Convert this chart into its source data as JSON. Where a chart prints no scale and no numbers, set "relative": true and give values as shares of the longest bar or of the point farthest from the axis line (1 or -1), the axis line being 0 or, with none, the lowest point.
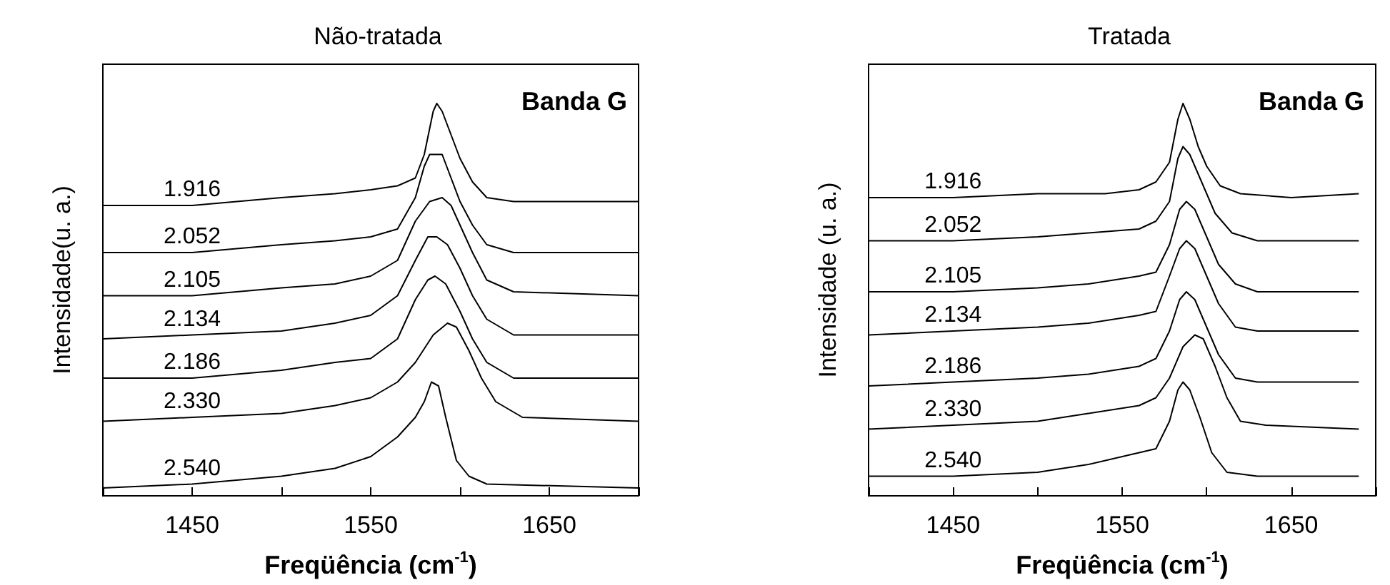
{
  "chart_data": [
    {
      "type": "line",
      "title": "Não-tratada",
      "xlabel": "Freqüência (cm$^{-1}$)",
      "ylabel": "Intensidade(u. a.)",
      "relative": true,
      "xlim": [
        1400,
        1700
      ],
      "xticks": [
        {
          "value": 1400,
          "label": null
        },
        1450,
        {
          "value": 1500,
          "label": null
        },
        1550,
        {
          "value": 1600,
          "label": null
        },
        1650,
        {
          "value": 1700,
          "label": null
        }
      ],
      "grid": false,
      "legend": false,
      "annotations": [
        "Banda G"
      ],
      "series": [
        {
          "name": "1.916",
          "color": "#000000",
          "x": [
            1400,
            1450,
            1500,
            1530,
            1550,
            1565,
            1575,
            1580,
            1585,
            1587,
            1590,
            1595,
            1600,
            1607,
            1615,
            1630,
            1700
          ],
          "values": [
            0.74,
            0.74,
            0.76,
            0.77,
            0.78,
            0.79,
            0.81,
            0.87,
            0.98,
            1,
            0.98,
            0.92,
            0.86,
            0.8,
            0.76,
            0.75,
            0.75
          ]
        },
        {
          "name": "2.052",
          "color": "#000000",
          "x": [
            1400,
            1450,
            1500,
            1530,
            1550,
            1565,
            1575,
            1580,
            1583,
            1590,
            1595,
            1600,
            1607,
            1615,
            1630,
            1700
          ],
          "values": [
            0.62,
            0.62,
            0.64,
            0.65,
            0.66,
            0.68,
            0.76,
            0.84,
            0.87,
            0.87,
            0.81,
            0.75,
            0.69,
            0.64,
            0.62,
            0.62
          ]
        },
        {
          "name": "2.105",
          "color": "#000000",
          "x": [
            1400,
            1450,
            1500,
            1530,
            1550,
            1565,
            1575,
            1583,
            1590,
            1595,
            1600,
            1607,
            1615,
            1630,
            1700
          ],
          "values": [
            0.51,
            0.51,
            0.53,
            0.54,
            0.56,
            0.6,
            0.7,
            0.75,
            0.76,
            0.74,
            0.69,
            0.62,
            0.55,
            0.52,
            0.51
          ]
        },
        {
          "name": "2.134",
          "color": "#000000",
          "x": [
            1400,
            1450,
            1500,
            1530,
            1550,
            1565,
            1575,
            1582,
            1587,
            1593,
            1600,
            1607,
            1615,
            1630,
            1700
          ],
          "values": [
            0.4,
            0.41,
            0.42,
            0.44,
            0.46,
            0.51,
            0.6,
            0.66,
            0.66,
            0.64,
            0.58,
            0.51,
            0.45,
            0.41,
            0.41
          ]
        },
        {
          "name": "2.186",
          "color": "#000000",
          "x": [
            1400,
            1450,
            1500,
            1530,
            1550,
            1565,
            1575,
            1582,
            1586,
            1592,
            1600,
            1607,
            1615,
            1630,
            1700
          ],
          "values": [
            0.3,
            0.3,
            0.32,
            0.34,
            0.35,
            0.4,
            0.5,
            0.55,
            0.56,
            0.54,
            0.47,
            0.4,
            0.34,
            0.3,
            0.3
          ]
        },
        {
          "name": "2.330",
          "color": "#000000",
          "x": [
            1400,
            1450,
            1500,
            1530,
            1550,
            1565,
            1575,
            1585,
            1593,
            1598,
            1605,
            1612,
            1620,
            1635,
            1700
          ],
          "values": [
            0.19,
            0.2,
            0.21,
            0.23,
            0.25,
            0.29,
            0.34,
            0.41,
            0.44,
            0.43,
            0.37,
            0.3,
            0.24,
            0.2,
            0.19
          ]
        },
        {
          "name": "2.540",
          "color": "#000000",
          "x": [
            1400,
            1450,
            1500,
            1530,
            1550,
            1565,
            1575,
            1580,
            1584,
            1588,
            1592,
            1598,
            1605,
            1615,
            1700
          ],
          "values": [
            0.02,
            0.03,
            0.05,
            0.07,
            0.1,
            0.15,
            0.2,
            0.24,
            0.29,
            0.28,
            0.2,
            0.09,
            0.05,
            0.03,
            0.02
          ]
        }
      ]
    },
    {
      "type": "line",
      "title": "Tratada",
      "xlabel": "Freqüência (cm$^{-1}$)",
      "ylabel": "Intensidade (u. a.)",
      "relative": true,
      "xlim": [
        1400,
        1700
      ],
      "xticks": [
        {
          "value": 1400,
          "label": null
        },
        1450,
        {
          "value": 1500,
          "label": null
        },
        1550,
        {
          "value": 1600,
          "label": null
        },
        1650,
        {
          "value": 1700,
          "label": null
        }
      ],
      "grid": false,
      "legend": false,
      "annotations": [
        "Banda G"
      ],
      "series": [
        {
          "name": "1.916",
          "color": "#000000",
          "x": [
            1400,
            1450,
            1500,
            1540,
            1560,
            1570,
            1578,
            1583,
            1586,
            1590,
            1595,
            1600,
            1608,
            1620,
            1650,
            1690
          ],
          "values": [
            0.76,
            0.76,
            0.77,
            0.77,
            0.78,
            0.8,
            0.85,
            0.96,
            1,
            0.96,
            0.89,
            0.84,
            0.79,
            0.77,
            0.76,
            0.77
          ]
        },
        {
          "name": "2.052",
          "color": "#000000",
          "x": [
            1400,
            1450,
            1500,
            1530,
            1560,
            1570,
            1578,
            1583,
            1586,
            1590,
            1597,
            1605,
            1615,
            1630,
            1690
          ],
          "values": [
            0.65,
            0.65,
            0.66,
            0.67,
            0.68,
            0.7,
            0.75,
            0.86,
            0.89,
            0.87,
            0.8,
            0.72,
            0.67,
            0.65,
            0.65
          ]
        },
        {
          "name": "2.105",
          "color": "#000000",
          "x": [
            1400,
            1450,
            1500,
            1530,
            1560,
            1570,
            1578,
            1584,
            1588,
            1593,
            1600,
            1607,
            1617,
            1630,
            1690
          ],
          "values": [
            0.52,
            0.52,
            0.53,
            0.54,
            0.56,
            0.57,
            0.64,
            0.73,
            0.75,
            0.73,
            0.66,
            0.59,
            0.54,
            0.52,
            0.52
          ]
        },
        {
          "name": "2.134",
          "color": "#000000",
          "x": [
            1400,
            1450,
            1500,
            1530,
            1560,
            1570,
            1578,
            1584,
            1588,
            1593,
            1600,
            1607,
            1617,
            1630,
            1690
          ],
          "values": [
            0.41,
            0.42,
            0.43,
            0.44,
            0.46,
            0.47,
            0.56,
            0.63,
            0.65,
            0.63,
            0.56,
            0.49,
            0.43,
            0.42,
            0.42
          ]
        },
        {
          "name": "2.186",
          "color": "#000000",
          "x": [
            1400,
            1450,
            1500,
            1530,
            1560,
            1570,
            1578,
            1584,
            1588,
            1593,
            1600,
            1607,
            1617,
            1630,
            1690
          ],
          "values": [
            0.28,
            0.29,
            0.3,
            0.31,
            0.33,
            0.35,
            0.42,
            0.5,
            0.52,
            0.5,
            0.43,
            0.36,
            0.3,
            0.29,
            0.29
          ]
        },
        {
          "name": "2.330",
          "color": "#000000",
          "x": [
            1400,
            1450,
            1500,
            1530,
            1560,
            1570,
            1578,
            1586,
            1593,
            1598,
            1605,
            1612,
            1620,
            1635,
            1690
          ],
          "values": [
            0.17,
            0.18,
            0.19,
            0.21,
            0.23,
            0.25,
            0.3,
            0.38,
            0.41,
            0.4,
            0.33,
            0.25,
            0.19,
            0.18,
            0.17
          ]
        },
        {
          "name": "2.540",
          "color": "#000000",
          "x": [
            1400,
            1450,
            1500,
            1530,
            1560,
            1570,
            1578,
            1583,
            1586,
            1590,
            1596,
            1603,
            1612,
            1630,
            1690
          ],
          "values": [
            0.05,
            0.05,
            0.06,
            0.08,
            0.11,
            0.12,
            0.19,
            0.27,
            0.29,
            0.27,
            0.2,
            0.11,
            0.06,
            0.05,
            0.05
          ]
        }
      ]
    }
  ]
}
